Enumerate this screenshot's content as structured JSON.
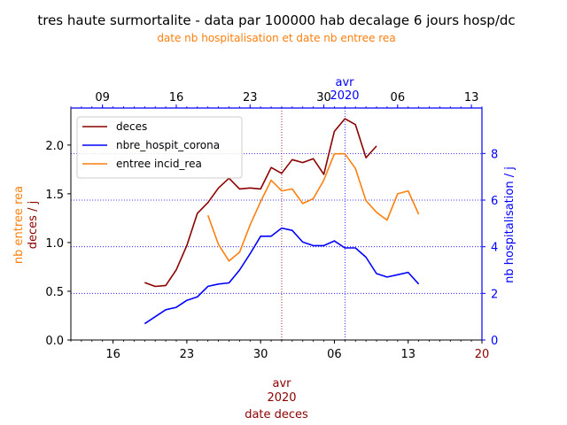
{
  "chart_data": {
    "type": "line",
    "title": "tres haute surmortalite - data par 100000 hab decalage 6 jours hosp/dc",
    "subtitle": "date nb hospitalisation et date nb entree rea",
    "x_bottom": {
      "label": "date deces",
      "tick_labels": [
        "16",
        "23",
        "30",
        "06",
        "13",
        "20"
      ],
      "tick_days": [
        16,
        23,
        30,
        37,
        44,
        51
      ],
      "month_label": "avr",
      "year_label": "2020",
      "range_days": [
        12,
        51
      ]
    },
    "x_top": {
      "tick_labels": [
        "09",
        "16",
        "23",
        "30",
        "06",
        "13"
      ],
      "tick_days": [
        9,
        16,
        23,
        30,
        37,
        44
      ],
      "month_label": "avr",
      "year_label": "2020",
      "range_days": [
        6,
        45
      ]
    },
    "y_left": {
      "label_rea": "nb entree rea",
      "label_deces": "deces / j",
      "ticks": [
        0.0,
        0.5,
        1.0,
        1.5,
        2.0
      ],
      "tick_labels": [
        "0.0",
        "0.5",
        "1.0",
        "1.5",
        "2.0"
      ],
      "ylim": [
        0,
        2.38
      ]
    },
    "y_right": {
      "label": "nb hospitalisation / j",
      "ticks": [
        0,
        2,
        4,
        6,
        8
      ],
      "tick_labels": [
        "0",
        "2",
        "4",
        "6",
        "8"
      ],
      "ylim": [
        0,
        9.95
      ]
    },
    "grid": "dotted horizontal at right-axis ticks; vertical dotted lines at 1 avr on both axes",
    "legend_position": "upper-left",
    "colors": {
      "deces": "#8b0000",
      "hospit": "#0000ff",
      "rea": "#ff7f0e",
      "text": "#000000"
    },
    "series": [
      {
        "name": "deces",
        "axis": "left",
        "start_day": 19,
        "values": [
          0.59,
          0.55,
          0.56,
          0.72,
          0.97,
          1.3,
          1.41,
          1.56,
          1.66,
          1.55,
          1.56,
          1.55,
          1.77,
          1.71,
          1.85,
          1.82,
          1.86,
          1.7,
          2.14,
          2.27,
          2.21,
          1.87,
          1.99
        ]
      },
      {
        "name": "nbre_hospit_corona",
        "axis": "right",
        "start_day": 19,
        "values": [
          0.7,
          1.0,
          1.3,
          1.4,
          1.7,
          1.85,
          2.3,
          2.4,
          2.45,
          3.0,
          3.7,
          4.45,
          4.45,
          4.8,
          4.7,
          4.2,
          4.05,
          4.05,
          4.25,
          3.95,
          3.95,
          3.55,
          2.85,
          2.7,
          2.8,
          2.9,
          2.4
        ]
      },
      {
        "name": "entree incid_rea",
        "axis": "left",
        "start_day": 25,
        "values": [
          1.28,
          0.98,
          0.81,
          0.9,
          1.18,
          1.42,
          1.64,
          1.53,
          1.55,
          1.4,
          1.45,
          1.64,
          1.91,
          1.91,
          1.76,
          1.43,
          1.31,
          1.23,
          1.5,
          1.53,
          1.29
        ]
      }
    ]
  }
}
